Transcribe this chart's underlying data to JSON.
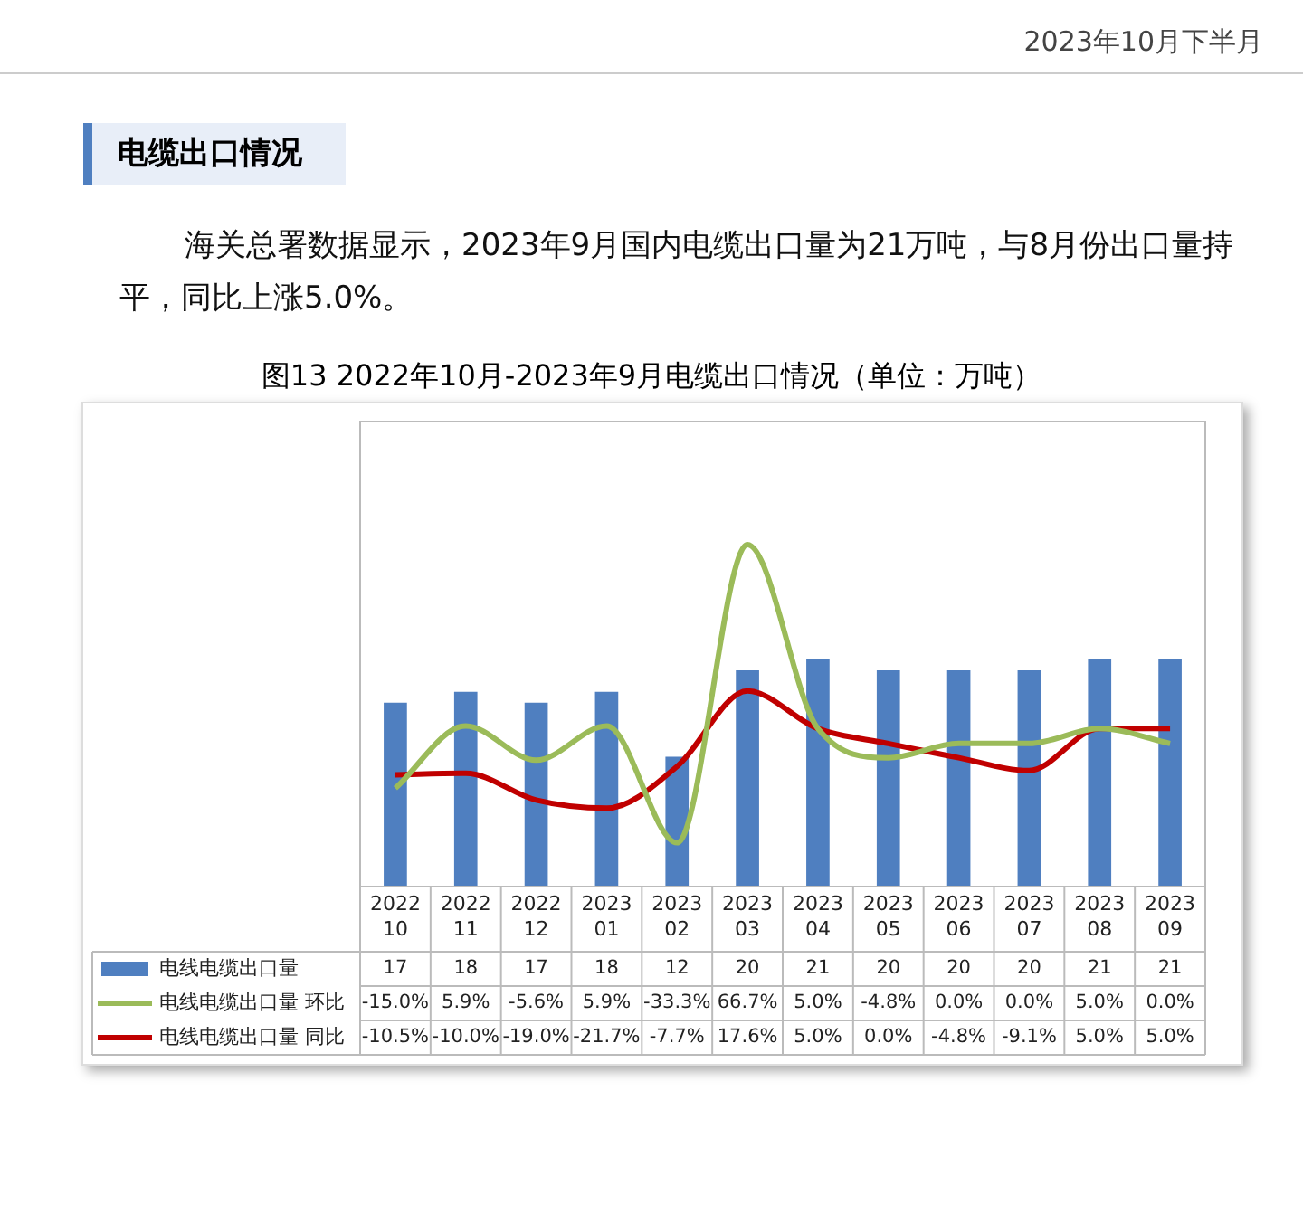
{
  "chart_data": {
    "type": "bar",
    "title": "图13 2022年10月-2023年9月电缆出口情况（单位：万吨）",
    "annotations": [
      "2023年10月下半月",
      "电缆出口情况",
      "海关总署数据显示，2023年9月国内电缆出口量为21万吨，与8月份出口量持平，同比上涨5.0%。"
    ],
    "categories": [
      "2022 10",
      "2022 11",
      "2022 12",
      "2023 01",
      "2023 02",
      "2023 03",
      "2023 04",
      "2023 05",
      "2023 06",
      "2023 07",
      "2023 08",
      "2023 09"
    ],
    "ylim": [
      0,
      43
    ],
    "y2lim": [
      -48,
      108
    ],
    "tick_labels": "x",
    "legend": "bottom",
    "series": [
      {
        "name": "电线电缆出口量",
        "color": "#4f7fc0",
        "values": [
          17,
          18,
          17,
          18,
          12,
          20,
          21,
          20,
          20,
          20,
          21,
          21
        ],
        "value_labels": [
          "17",
          "18",
          "17",
          "18",
          "12",
          "20",
          "21",
          "20",
          "20",
          "20",
          "21",
          "21"
        ]
      },
      {
        "name": "电线电缆出口量 环比",
        "type": "line",
        "axis": "y2",
        "color": "#9bbb59",
        "values": [
          -15.0,
          5.9,
          -5.6,
          5.9,
          -33.3,
          66.7,
          5.0,
          -4.8,
          0.0,
          0.0,
          5.0,
          0.0
        ],
        "value_labels": [
          "-15.0%",
          "5.9%",
          "-5.6%",
          "5.9%",
          "-33.3%",
          "66.7%",
          "5.0%",
          "-4.8%",
          "0.0%",
          "0.0%",
          "5.0%",
          "0.0%"
        ]
      },
      {
        "name": "电线电缆出口量 同比",
        "type": "line",
        "axis": "y2",
        "color": "#c00000",
        "values": [
          -10.5,
          -10.0,
          -19.0,
          -21.7,
          -7.7,
          17.6,
          5.0,
          0.0,
          -4.8,
          -9.1,
          5.0,
          5.0
        ],
        "value_labels": [
          "-10.5%",
          "-10.0%",
          "-19.0%",
          "-21.7%",
          "-7.7%",
          "17.6%",
          "5.0%",
          "0.0%",
          "-4.8%",
          "-9.1%",
          "5.0%",
          "5.0%"
        ]
      }
    ]
  }
}
